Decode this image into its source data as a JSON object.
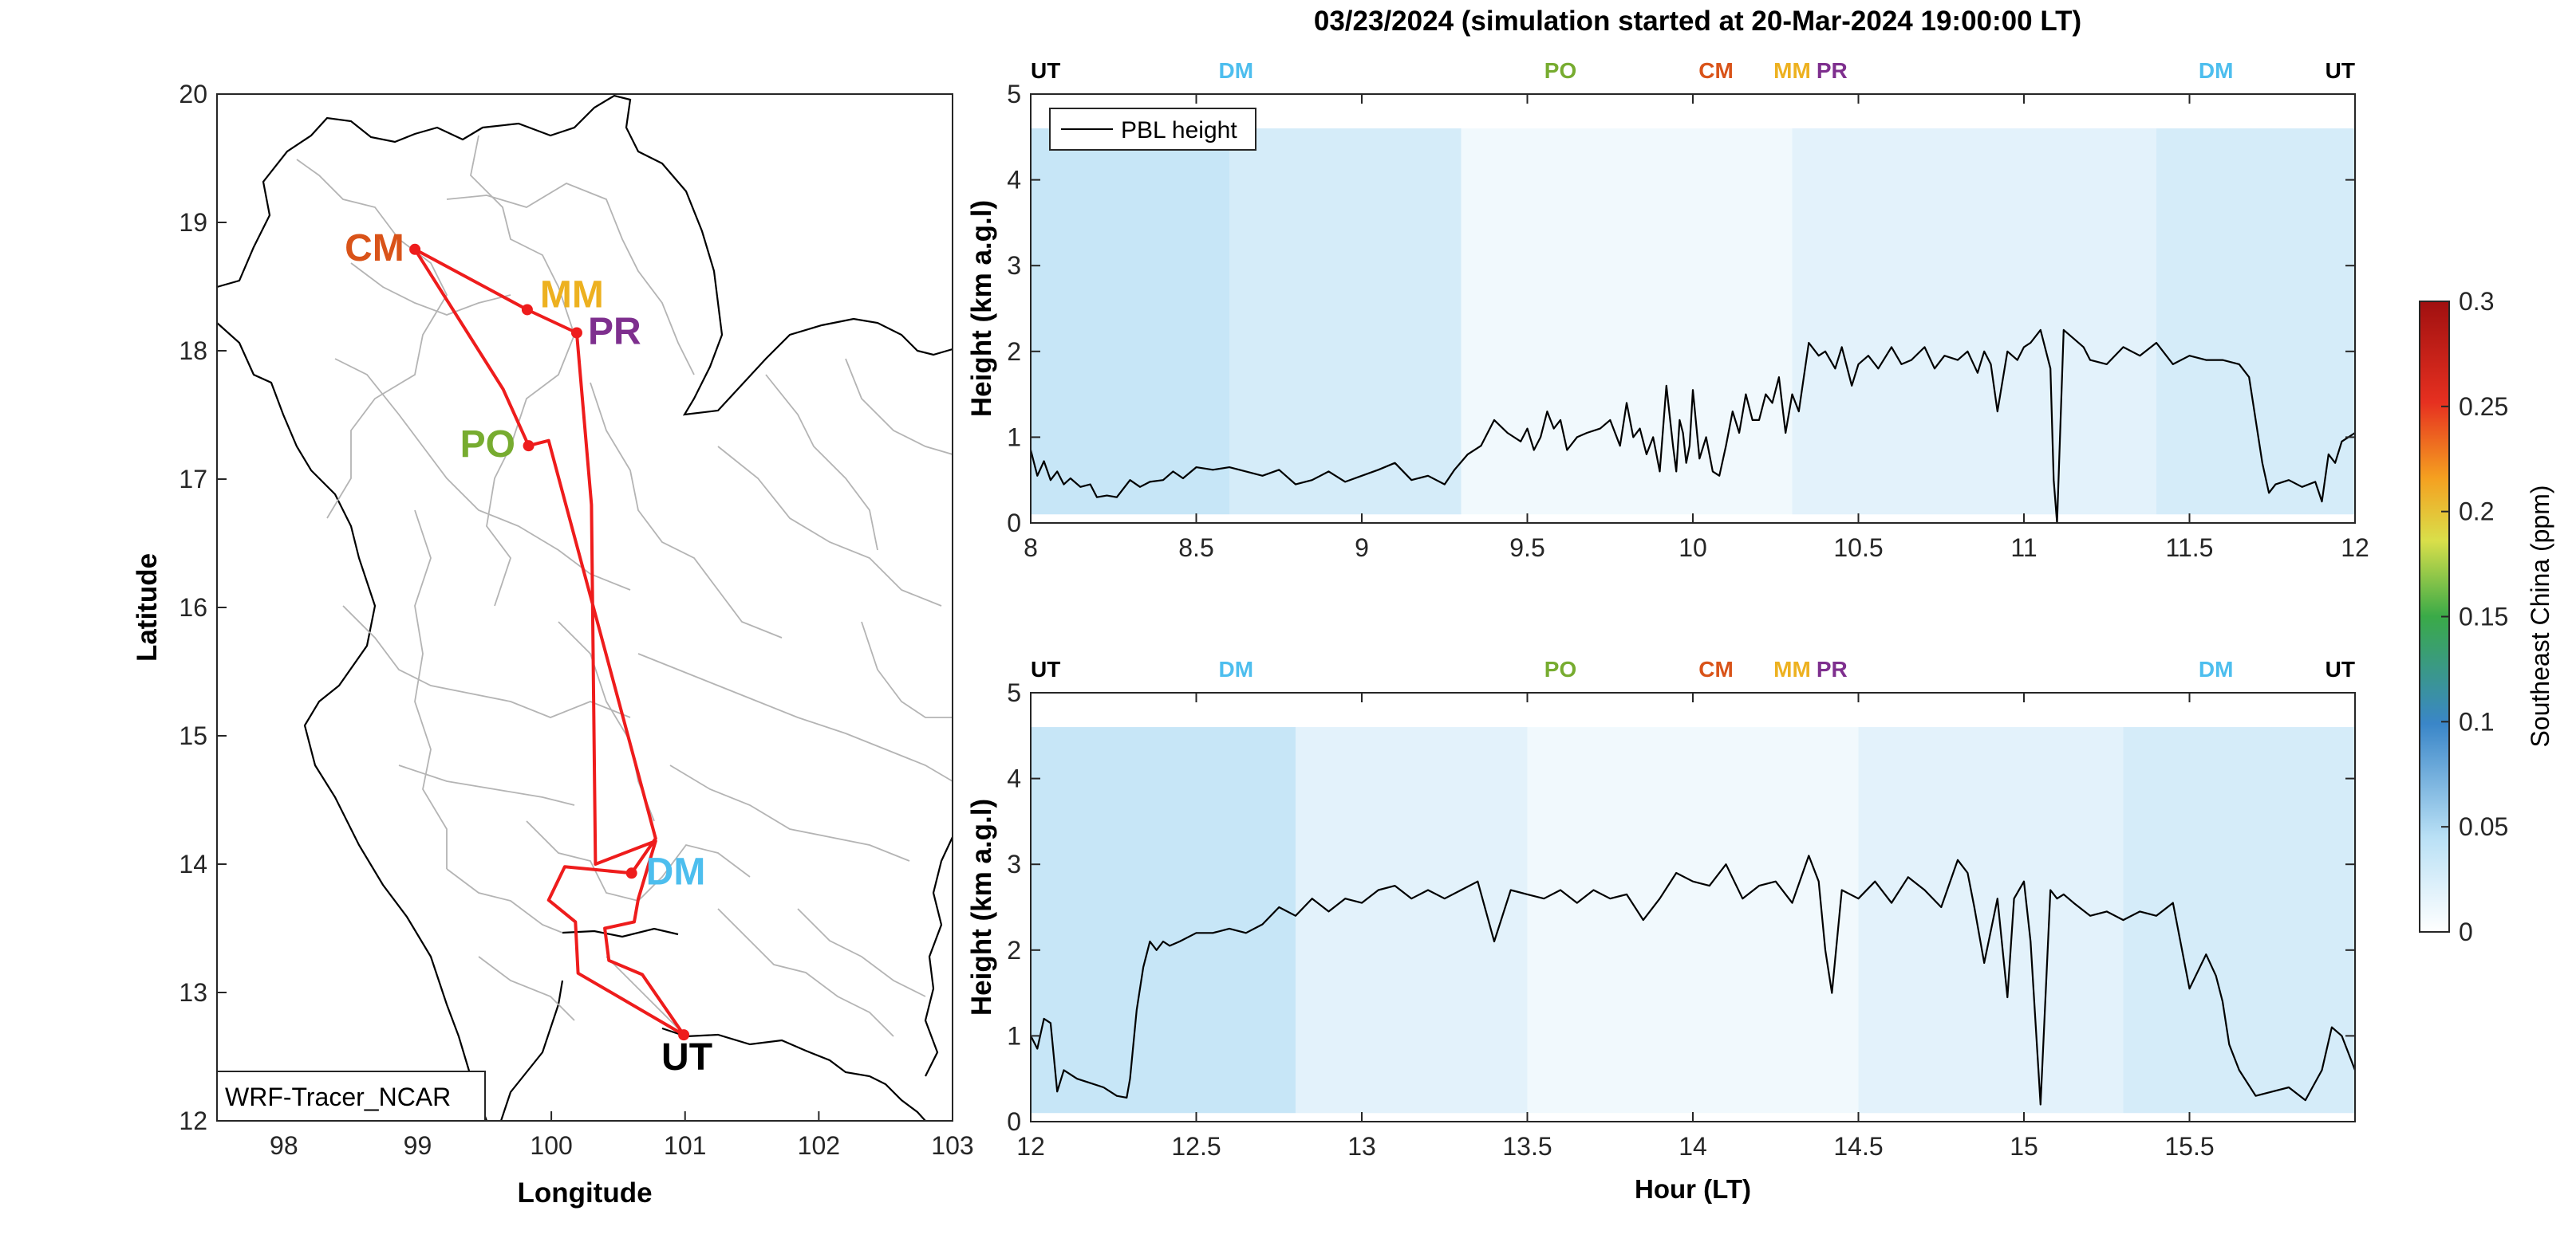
{
  "figure": {
    "title": "03/23/2024 (simulation started at 20-Mar-2024 19:00:00 LT)"
  },
  "colors": {
    "route": "#ee1c1c",
    "border": "#000000",
    "province": "#b4b4b4",
    "pbl": "#000000",
    "UT": "#000000",
    "DM": "#4dbeee",
    "PO": "#77ac30",
    "CM": "#d95319",
    "MM": "#edb120",
    "PR": "#7e2f8e"
  },
  "chart_data": [
    {
      "type": "map",
      "xlabel": "Longitude",
      "ylabel": "Latitude",
      "xlim": [
        97.5,
        103
      ],
      "ylim": [
        12,
        20
      ],
      "xticks": [
        98,
        99,
        100,
        101,
        102,
        103
      ],
      "yticks": [
        12,
        13,
        14,
        15,
        16,
        17,
        18,
        19,
        20
      ],
      "model_label": "WRF-Tracer_NCAR",
      "stations": [
        {
          "code": "CM",
          "lon": 98.98,
          "lat": 18.79
        },
        {
          "code": "MM",
          "lon": 99.82,
          "lat": 18.32
        },
        {
          "code": "PR",
          "lon": 100.19,
          "lat": 18.14
        },
        {
          "code": "PO",
          "lon": 99.83,
          "lat": 17.26
        },
        {
          "code": "DM",
          "lon": 100.6,
          "lat": 13.93
        },
        {
          "code": "UT",
          "lon": 100.99,
          "lat": 12.67
        }
      ],
      "route": [
        [
          100.99,
          12.67
        ],
        [
          100.2,
          13.15
        ],
        [
          100.18,
          13.55
        ],
        [
          99.98,
          13.72
        ],
        [
          100.1,
          13.98
        ],
        [
          100.6,
          13.93
        ],
        [
          100.78,
          14.2
        ],
        [
          99.98,
          17.3
        ],
        [
          99.83,
          17.26
        ],
        [
          99.64,
          17.7
        ],
        [
          98.98,
          18.79
        ],
        [
          99.82,
          18.32
        ],
        [
          100.19,
          18.14
        ],
        [
          100.3,
          16.8
        ],
        [
          100.33,
          14.0
        ],
        [
          100.78,
          14.18
        ],
        [
          100.65,
          13.73
        ],
        [
          100.62,
          13.55
        ],
        [
          100.4,
          13.5
        ],
        [
          100.43,
          13.25
        ],
        [
          100.68,
          13.14
        ],
        [
          100.99,
          12.67
        ]
      ]
    },
    {
      "type": "line",
      "panel": "top",
      "xlabel": "",
      "ylabel": "Height (km a.g.l)",
      "xlim": [
        8,
        12
      ],
      "ylim": [
        0,
        5
      ],
      "xticks": [
        8,
        8.5,
        9,
        9.5,
        10,
        10.5,
        11,
        11.5,
        12
      ],
      "yticks": [
        0,
        1,
        2,
        3,
        4,
        5
      ],
      "legend": "PBL height",
      "legend_position": "top-left",
      "markers": [
        {
          "code": "UT",
          "x": 8.0
        },
        {
          "code": "DM",
          "x": 8.62
        },
        {
          "code": "PO",
          "x": 9.6
        },
        {
          "code": "CM",
          "x": 10.07
        },
        {
          "code": "MM",
          "x": 10.3
        },
        {
          "code": "PR",
          "x": 10.42
        },
        {
          "code": "DM",
          "x": 11.58
        },
        {
          "code": "UT",
          "x": 11.96
        }
      ],
      "background_bands": [
        {
          "x0": 8.0,
          "x1": 8.6,
          "value": 0.04
        },
        {
          "x0": 8.6,
          "x1": 9.3,
          "value": 0.03
        },
        {
          "x0": 9.3,
          "x1": 10.3,
          "value": 0.01
        },
        {
          "x0": 10.3,
          "x1": 11.4,
          "value": 0.02
        },
        {
          "x0": 11.4,
          "x1": 12.0,
          "value": 0.03
        }
      ],
      "series": [
        {
          "name": "PBL height",
          "x": [
            8.0,
            8.02,
            8.04,
            8.06,
            8.08,
            8.1,
            8.12,
            8.15,
            8.18,
            8.2,
            8.23,
            8.26,
            8.3,
            8.33,
            8.36,
            8.4,
            8.43,
            8.46,
            8.5,
            8.55,
            8.6,
            8.65,
            8.7,
            8.75,
            8.8,
            8.85,
            8.9,
            8.95,
            9.0,
            9.05,
            9.1,
            9.15,
            9.2,
            9.25,
            9.28,
            9.32,
            9.36,
            9.4,
            9.44,
            9.48,
            9.5,
            9.52,
            9.54,
            9.56,
            9.58,
            9.6,
            9.62,
            9.65,
            9.68,
            9.72,
            9.75,
            9.78,
            9.8,
            9.82,
            9.84,
            9.86,
            9.88,
            9.9,
            9.92,
            9.94,
            9.95,
            9.96,
            9.97,
            9.98,
            9.99,
            10.0,
            10.02,
            10.04,
            10.06,
            10.08,
            10.1,
            10.12,
            10.14,
            10.16,
            10.18,
            10.2,
            10.22,
            10.24,
            10.26,
            10.28,
            10.3,
            10.32,
            10.35,
            10.38,
            10.4,
            10.43,
            10.45,
            10.48,
            10.5,
            10.53,
            10.56,
            10.6,
            10.63,
            10.66,
            10.7,
            10.73,
            10.76,
            10.8,
            10.83,
            10.86,
            10.88,
            10.9,
            10.92,
            10.95,
            10.98,
            11.0,
            11.02,
            11.05,
            11.08,
            11.09,
            11.1,
            11.12,
            11.15,
            11.18,
            11.2,
            11.25,
            11.3,
            11.35,
            11.4,
            11.45,
            11.5,
            11.55,
            11.6,
            11.65,
            11.68,
            11.7,
            11.72,
            11.74,
            11.76,
            11.8,
            11.84,
            11.88,
            11.9,
            11.92,
            11.94,
            11.96,
            11.98,
            12.0
          ],
          "values": [
            0.85,
            0.55,
            0.72,
            0.5,
            0.6,
            0.45,
            0.52,
            0.42,
            0.45,
            0.3,
            0.32,
            0.3,
            0.5,
            0.42,
            0.48,
            0.5,
            0.6,
            0.52,
            0.65,
            0.62,
            0.65,
            0.6,
            0.55,
            0.62,
            0.45,
            0.5,
            0.6,
            0.48,
            0.55,
            0.62,
            0.7,
            0.5,
            0.55,
            0.45,
            0.62,
            0.8,
            0.9,
            1.2,
            1.05,
            0.95,
            1.1,
            0.85,
            1.0,
            1.3,
            1.1,
            1.2,
            0.85,
            1.0,
            1.05,
            1.1,
            1.2,
            0.9,
            1.4,
            1.0,
            1.1,
            0.8,
            1.0,
            0.6,
            1.6,
            0.9,
            0.6,
            1.2,
            1.05,
            0.7,
            0.9,
            1.55,
            0.75,
            1.0,
            0.6,
            0.55,
            0.9,
            1.3,
            1.05,
            1.5,
            1.2,
            1.2,
            1.5,
            1.4,
            1.7,
            1.05,
            1.5,
            1.3,
            2.1,
            1.95,
            2.0,
            1.8,
            2.05,
            1.6,
            1.85,
            1.95,
            1.8,
            2.05,
            1.85,
            1.9,
            2.05,
            1.8,
            1.95,
            1.9,
            2.0,
            1.75,
            2.0,
            1.85,
            1.3,
            2.0,
            1.9,
            2.05,
            2.1,
            2.25,
            1.8,
            0.5,
            0.0,
            2.25,
            2.15,
            2.05,
            1.9,
            1.85,
            2.05,
            1.95,
            2.1,
            1.85,
            1.95,
            1.9,
            1.9,
            1.85,
            1.7,
            1.2,
            0.7,
            0.35,
            0.45,
            0.5,
            0.42,
            0.48,
            0.25,
            0.8,
            0.7,
            0.95,
            1.0,
            1.05
          ]
        }
      ]
    },
    {
      "type": "line",
      "panel": "bottom",
      "xlabel": "Hour (LT)",
      "ylabel": "Height (km a.g.l)",
      "xlim": [
        12,
        16
      ],
      "ylim": [
        0,
        5
      ],
      "xticks": [
        12,
        12.5,
        13,
        13.5,
        14,
        14.5,
        15,
        15.5
      ],
      "yticks": [
        0,
        1,
        2,
        3,
        4,
        5
      ],
      "markers": [
        {
          "code": "UT",
          "x": 12.0
        },
        {
          "code": "DM",
          "x": 12.62
        },
        {
          "code": "PO",
          "x": 13.6
        },
        {
          "code": "CM",
          "x": 14.07
        },
        {
          "code": "MM",
          "x": 14.3
        },
        {
          "code": "PR",
          "x": 14.42
        },
        {
          "code": "DM",
          "x": 15.58
        },
        {
          "code": "UT",
          "x": 15.96
        }
      ],
      "background_bands": [
        {
          "x0": 12.0,
          "x1": 12.8,
          "value": 0.04
        },
        {
          "x0": 12.8,
          "x1": 13.5,
          "value": 0.02
        },
        {
          "x0": 13.5,
          "x1": 14.5,
          "value": 0.01
        },
        {
          "x0": 14.5,
          "x1": 15.3,
          "value": 0.02
        },
        {
          "x0": 15.3,
          "x1": 16.0,
          "value": 0.03
        }
      ],
      "series": [
        {
          "name": "PBL height",
          "x": [
            12.0,
            12.02,
            12.04,
            12.06,
            12.08,
            12.1,
            12.14,
            12.18,
            12.22,
            12.26,
            12.29,
            12.3,
            12.32,
            12.34,
            12.36,
            12.38,
            12.4,
            12.42,
            12.45,
            12.5,
            12.55,
            12.6,
            12.65,
            12.7,
            12.75,
            12.8,
            12.85,
            12.9,
            12.95,
            13.0,
            13.05,
            13.1,
            13.15,
            13.2,
            13.25,
            13.3,
            13.35,
            13.4,
            13.45,
            13.5,
            13.55,
            13.6,
            13.65,
            13.7,
            13.75,
            13.8,
            13.85,
            13.9,
            13.95,
            14.0,
            14.05,
            14.1,
            14.15,
            14.2,
            14.25,
            14.3,
            14.35,
            14.38,
            14.4,
            14.42,
            14.45,
            14.5,
            14.55,
            14.6,
            14.65,
            14.7,
            14.75,
            14.8,
            14.83,
            14.85,
            14.88,
            14.92,
            14.95,
            14.97,
            15.0,
            15.02,
            15.05,
            15.08,
            15.1,
            15.12,
            15.15,
            15.2,
            15.25,
            15.3,
            15.35,
            15.4,
            15.45,
            15.5,
            15.55,
            15.58,
            15.6,
            15.62,
            15.65,
            15.7,
            15.75,
            15.8,
            15.85,
            15.9,
            15.93,
            15.96,
            16.0
          ],
          "values": [
            1.0,
            0.85,
            1.2,
            1.15,
            0.35,
            0.6,
            0.5,
            0.45,
            0.4,
            0.3,
            0.28,
            0.5,
            1.3,
            1.8,
            2.1,
            2.0,
            2.1,
            2.05,
            2.1,
            2.2,
            2.2,
            2.25,
            2.2,
            2.3,
            2.5,
            2.4,
            2.6,
            2.45,
            2.6,
            2.55,
            2.7,
            2.75,
            2.6,
            2.7,
            2.6,
            2.7,
            2.8,
            2.1,
            2.7,
            2.65,
            2.6,
            2.7,
            2.55,
            2.7,
            2.6,
            2.65,
            2.35,
            2.6,
            2.9,
            2.8,
            2.75,
            3.0,
            2.6,
            2.75,
            2.8,
            2.55,
            3.1,
            2.8,
            2.0,
            1.5,
            2.7,
            2.6,
            2.8,
            2.55,
            2.85,
            2.7,
            2.5,
            3.05,
            2.9,
            2.5,
            1.85,
            2.6,
            1.45,
            2.6,
            2.8,
            2.1,
            0.2,
            2.7,
            2.6,
            2.65,
            2.55,
            2.4,
            2.45,
            2.35,
            2.45,
            2.4,
            2.55,
            1.55,
            1.95,
            1.7,
            1.4,
            0.9,
            0.6,
            0.3,
            0.35,
            0.4,
            0.25,
            0.6,
            1.1,
            1.0,
            0.6
          ]
        }
      ]
    },
    {
      "type": "heatmap",
      "panel": "colorbar",
      "label": "Southeast China (ppm)",
      "ticks": [
        0,
        0.05,
        0.1,
        0.15,
        0.2,
        0.25,
        0.3
      ],
      "tick_labels": [
        "0",
        "0.05",
        "0.1",
        "0.15",
        "0.2",
        "0.25",
        "0.3"
      ],
      "range": [
        0,
        0.3
      ]
    }
  ]
}
